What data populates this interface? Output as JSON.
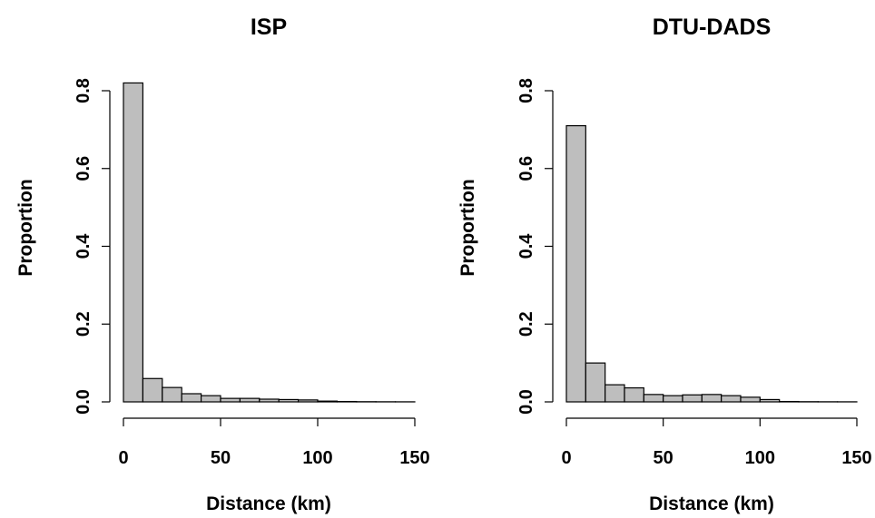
{
  "chart_data": [
    {
      "type": "bar",
      "title": "ISP",
      "xlabel": "Distance (km)",
      "ylabel": "Proportion",
      "xlim": [
        0,
        150
      ],
      "ylim": [
        0,
        0.8
      ],
      "x_ticks": [
        "0",
        "50",
        "100",
        "150"
      ],
      "y_ticks": [
        "0.0",
        "0.2",
        "0.4",
        "0.6",
        "0.8"
      ],
      "bin_width": 10,
      "bins": [
        {
          "x0": 0,
          "x1": 10,
          "value": 0.82
        },
        {
          "x0": 10,
          "x1": 20,
          "value": 0.06
        },
        {
          "x0": 20,
          "x1": 30,
          "value": 0.037
        },
        {
          "x0": 30,
          "x1": 40,
          "value": 0.021
        },
        {
          "x0": 40,
          "x1": 50,
          "value": 0.016
        },
        {
          "x0": 50,
          "x1": 60,
          "value": 0.009
        },
        {
          "x0": 60,
          "x1": 70,
          "value": 0.009
        },
        {
          "x0": 70,
          "x1": 80,
          "value": 0.007
        },
        {
          "x0": 80,
          "x1": 90,
          "value": 0.006
        },
        {
          "x0": 90,
          "x1": 100,
          "value": 0.005
        },
        {
          "x0": 100,
          "x1": 110,
          "value": 0.002
        },
        {
          "x0": 110,
          "x1": 120,
          "value": 0.001
        },
        {
          "x0": 120,
          "x1": 130,
          "value": 0.0005
        },
        {
          "x0": 130,
          "x1": 140,
          "value": 0.0003
        },
        {
          "x0": 140,
          "x1": 150,
          "value": 0.0002
        }
      ],
      "grid": false,
      "bar_color": "#bebebe"
    },
    {
      "type": "bar",
      "title": "DTU-DADS",
      "xlabel": "Distance (km)",
      "ylabel": "Proportion",
      "xlim": [
        0,
        150
      ],
      "ylim": [
        0,
        0.8
      ],
      "x_ticks": [
        "0",
        "50",
        "100",
        "150"
      ],
      "y_ticks": [
        "0.0",
        "0.2",
        "0.4",
        "0.6",
        "0.8"
      ],
      "bin_width": 10,
      "bins": [
        {
          "x0": 0,
          "x1": 10,
          "value": 0.71
        },
        {
          "x0": 10,
          "x1": 20,
          "value": 0.1
        },
        {
          "x0": 20,
          "x1": 30,
          "value": 0.044
        },
        {
          "x0": 30,
          "x1": 40,
          "value": 0.036
        },
        {
          "x0": 40,
          "x1": 50,
          "value": 0.019
        },
        {
          "x0": 50,
          "x1": 60,
          "value": 0.016
        },
        {
          "x0": 60,
          "x1": 70,
          "value": 0.018
        },
        {
          "x0": 70,
          "x1": 80,
          "value": 0.019
        },
        {
          "x0": 80,
          "x1": 90,
          "value": 0.016
        },
        {
          "x0": 90,
          "x1": 100,
          "value": 0.012
        },
        {
          "x0": 100,
          "x1": 110,
          "value": 0.006
        },
        {
          "x0": 110,
          "x1": 120,
          "value": 0.001
        },
        {
          "x0": 120,
          "x1": 130,
          "value": 0.0005
        },
        {
          "x0": 130,
          "x1": 140,
          "value": 0.0003
        },
        {
          "x0": 140,
          "x1": 150,
          "value": 0.0002
        }
      ],
      "grid": false,
      "bar_color": "#bebebe"
    }
  ]
}
